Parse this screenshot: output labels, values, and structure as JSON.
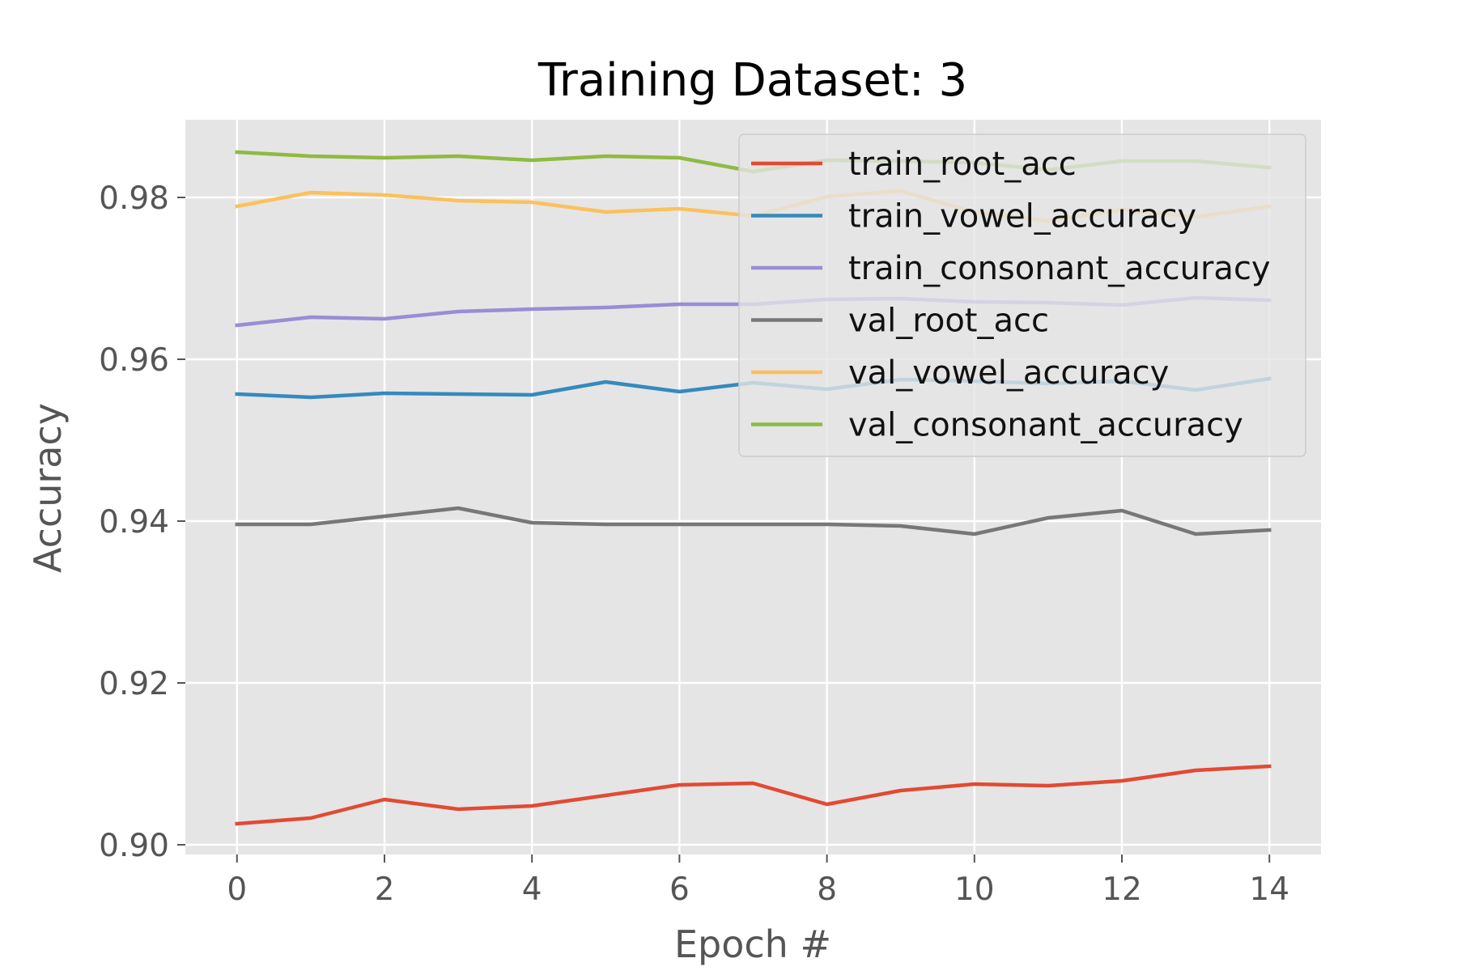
{
  "chart_data": {
    "type": "line",
    "title": "Training Dataset: 3",
    "xlabel": "Epoch #",
    "ylabel": "Accuracy",
    "xlim": [
      -0.7,
      14.7
    ],
    "ylim": [
      0.8988,
      0.9896
    ],
    "x_ticks": [
      "0",
      "2",
      "4",
      "6",
      "8",
      "10",
      "12",
      "14"
    ],
    "y_ticks": [
      "0.90",
      "0.92",
      "0.94",
      "0.96",
      "0.98"
    ],
    "grid": true,
    "legend_position": "top-right",
    "x": [
      0,
      1,
      2,
      3,
      4,
      5,
      6,
      7,
      8,
      9,
      10,
      11,
      12,
      13,
      14
    ],
    "series": [
      {
        "name": "train_root_acc",
        "color": "#E24A33",
        "values": [
          0.9026,
          0.9033,
          0.9056,
          0.9044,
          0.9048,
          0.9061,
          0.9074,
          0.9076,
          0.905,
          0.9067,
          0.9075,
          0.9073,
          0.9079,
          0.9092,
          0.9097
        ]
      },
      {
        "name": "train_vowel_accuracy",
        "color": "#348ABD",
        "values": [
          0.9557,
          0.9553,
          0.9558,
          0.9557,
          0.9556,
          0.9572,
          0.956,
          0.9571,
          0.9563,
          0.9575,
          0.9573,
          0.957,
          0.9573,
          0.9562,
          0.9576
        ]
      },
      {
        "name": "train_consonant_accuracy",
        "color": "#988ED5",
        "values": [
          0.9642,
          0.9652,
          0.965,
          0.9659,
          0.9662,
          0.9664,
          0.9668,
          0.9668,
          0.9674,
          0.9675,
          0.9671,
          0.967,
          0.9667,
          0.9676,
          0.9673
        ]
      },
      {
        "name": "val_root_acc",
        "color": "#777777",
        "values": [
          0.9396,
          0.9396,
          0.9406,
          0.9416,
          0.9398,
          0.9396,
          0.9396,
          0.9396,
          0.9396,
          0.9394,
          0.9384,
          0.9404,
          0.9413,
          0.9384,
          0.9389
        ]
      },
      {
        "name": "val_vowel_accuracy",
        "color": "#FBC15E",
        "values": [
          0.9789,
          0.9806,
          0.9803,
          0.9796,
          0.9794,
          0.9782,
          0.9786,
          0.9777,
          0.9801,
          0.9808,
          0.9782,
          0.9771,
          0.9785,
          0.9776,
          0.9789
        ]
      },
      {
        "name": "val_consonant_accuracy",
        "color": "#8EBA42",
        "values": [
          0.9856,
          0.9851,
          0.9849,
          0.9851,
          0.9846,
          0.9851,
          0.9849,
          0.9832,
          0.9846,
          0.9845,
          0.9843,
          0.9834,
          0.9845,
          0.9845,
          0.9837
        ]
      }
    ]
  }
}
